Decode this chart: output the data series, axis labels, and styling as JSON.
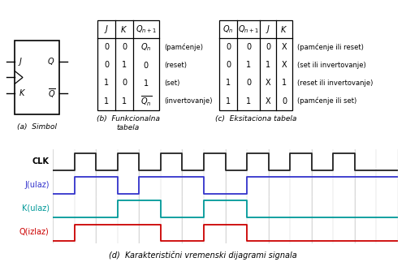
{
  "title_d": "(d)  Karakteristični vremenski dijagrami signala",
  "clk_color": "#222222",
  "j_color": "#3333cc",
  "k_color": "#009999",
  "q_color": "#cc0000",
  "bg_color": "#ffffff",
  "grid_color": "#cccccc",
  "func_notes": [
    "(pamćenje)",
    "(reset)",
    "(set)",
    "(invertovanje)"
  ],
  "exc_notes": [
    "(pamćenje ili reset)",
    "(set ili invertovanje)",
    "(reset ili invertovanje)",
    "(pamćenje ili set)"
  ]
}
